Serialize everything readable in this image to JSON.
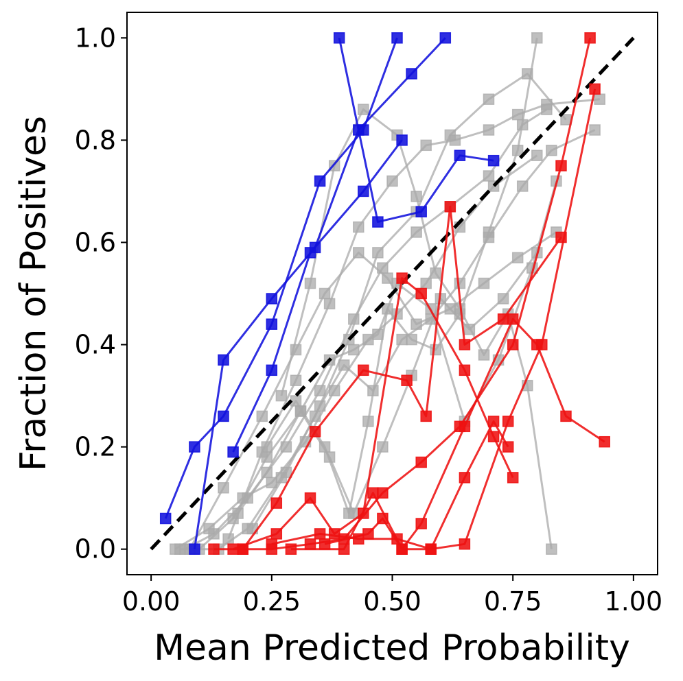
{
  "chart_data": {
    "type": "line",
    "title": "",
    "xlabel": "Mean Predicted Probability",
    "ylabel": "Fraction of Positives",
    "xlim": [
      -0.05,
      1.05
    ],
    "ylim": [
      -0.05,
      1.05
    ],
    "xticks": [
      0,
      0.25,
      0.5,
      0.75,
      1.0
    ],
    "yticks": [
      0,
      0.2,
      0.4,
      0.6,
      0.8,
      1.0
    ],
    "xtick_labels": [
      "0.00",
      "0.25",
      "0.50",
      "0.75",
      "1.00"
    ],
    "ytick_labels": [
      "0.0",
      "0.2",
      "0.4",
      "0.6",
      "0.8",
      "1.0"
    ],
    "grid": false,
    "reference_line": {
      "name": "perfect-calibration",
      "x": [
        0,
        1
      ],
      "y": [
        0,
        1
      ],
      "color": "#000000",
      "style": "dashed"
    },
    "colors": {
      "gray": "#aaaaaa",
      "blue": "#1111dd",
      "red": "#ee1111"
    },
    "series": [
      {
        "name": "blue-1",
        "group": "blue",
        "x": [
          0.03,
          0.09,
          0.15,
          0.25,
          0.35,
          0.44,
          0.51
        ],
        "y": [
          0.06,
          0.2,
          0.26,
          0.44,
          0.72,
          0.82,
          1.0
        ]
      },
      {
        "name": "blue-2",
        "group": "blue",
        "x": [
          0.09,
          0.15,
          0.25,
          0.34,
          0.43,
          0.54,
          0.61
        ],
        "y": [
          0.0,
          0.37,
          0.49,
          0.59,
          0.82,
          0.93,
          1.0
        ]
      },
      {
        "name": "blue-3",
        "group": "blue",
        "x": [
          0.17,
          0.25,
          0.33,
          0.44,
          0.52
        ],
        "y": [
          0.19,
          0.35,
          0.58,
          0.7,
          0.8
        ]
      },
      {
        "name": "blue-4",
        "group": "blue",
        "x": [
          0.39,
          0.47,
          0.56,
          0.64,
          0.71
        ],
        "y": [
          1.0,
          0.64,
          0.66,
          0.77,
          0.76
        ]
      },
      {
        "name": "red-1",
        "group": "red",
        "x": [
          0.13,
          0.19,
          0.25,
          0.33,
          0.4,
          0.48,
          0.56,
          0.64,
          0.75,
          0.85,
          0.91
        ],
        "y": [
          0.0,
          0.0,
          0.0,
          0.01,
          0.02,
          0.11,
          0.17,
          0.24,
          0.4,
          0.75,
          1.0
        ]
      },
      {
        "name": "red-2",
        "group": "red",
        "x": [
          0.17,
          0.26,
          0.33,
          0.38,
          0.44,
          0.52,
          0.56,
          0.65,
          0.71,
          0.75
        ],
        "y": [
          0.0,
          0.03,
          0.1,
          0.03,
          0.07,
          0.53,
          0.5,
          0.35,
          0.22,
          0.14
        ]
      },
      {
        "name": "red-3",
        "group": "red",
        "x": [
          0.19,
          0.26,
          0.34,
          0.44,
          0.53,
          0.57,
          0.62,
          0.65,
          0.73,
          0.85
        ],
        "y": [
          0.0,
          0.09,
          0.23,
          0.35,
          0.33,
          0.26,
          0.67,
          0.4,
          0.45,
          0.61
        ]
      },
      {
        "name": "red-4",
        "group": "red",
        "x": [
          0.25,
          0.35,
          0.43,
          0.51,
          0.58,
          0.65,
          0.71,
          0.74
        ],
        "y": [
          0.01,
          0.03,
          0.02,
          0.02,
          0.0,
          0.14,
          0.25,
          0.2
        ]
      },
      {
        "name": "red-5",
        "group": "red",
        "x": [
          0.29,
          0.4,
          0.46,
          0.52,
          0.56,
          0.65,
          0.75,
          0.8,
          0.86,
          0.94
        ],
        "y": [
          0.0,
          0.0,
          0.11,
          0.0,
          0.05,
          0.24,
          0.45,
          0.4,
          0.26,
          0.21
        ]
      },
      {
        "name": "red-6",
        "group": "red",
        "x": [
          0.36,
          0.45,
          0.48,
          0.52,
          0.58,
          0.65,
          0.74,
          0.81,
          0.92
        ],
        "y": [
          0.01,
          0.03,
          0.06,
          0.0,
          0.0,
          0.01,
          0.25,
          0.4,
          0.9
        ]
      },
      {
        "name": "gray-1",
        "group": "gray",
        "x": [
          0.05,
          0.12,
          0.19,
          0.25,
          0.32,
          0.38,
          0.45,
          0.51,
          0.57,
          0.64,
          0.71,
          0.8
        ],
        "y": [
          0.0,
          0.04,
          0.1,
          0.13,
          0.21,
          0.31,
          0.41,
          0.46,
          0.52,
          0.63,
          0.71,
          0.77
        ]
      },
      {
        "name": "gray-2",
        "group": "gray",
        "x": [
          0.08,
          0.15,
          0.23,
          0.3,
          0.36,
          0.43,
          0.49,
          0.55,
          0.62,
          0.69,
          0.76,
          0.84
        ],
        "y": [
          0.0,
          0.12,
          0.26,
          0.39,
          0.5,
          0.58,
          0.53,
          0.44,
          0.47,
          0.52,
          0.57,
          0.62
        ]
      },
      {
        "name": "gray-3",
        "group": "gray",
        "x": [
          0.06,
          0.14,
          0.2,
          0.27,
          0.34,
          0.41,
          0.47,
          0.55,
          0.62,
          0.7,
          0.78,
          0.86
        ],
        "y": [
          0.0,
          0.0,
          0.04,
          0.14,
          0.26,
          0.41,
          0.58,
          0.66,
          0.81,
          0.88,
          0.93,
          0.84
        ]
      },
      {
        "name": "gray-4",
        "group": "gray",
        "x": [
          0.1,
          0.17,
          0.24,
          0.31,
          0.37,
          0.42,
          0.48,
          0.54,
          0.6,
          0.66,
          0.73,
          0.8
        ],
        "y": [
          0.0,
          0.06,
          0.18,
          0.27,
          0.18,
          0.07,
          0.2,
          0.34,
          0.49,
          0.43,
          0.49,
          0.58
        ]
      },
      {
        "name": "gray-5",
        "group": "gray",
        "x": [
          0.07,
          0.13,
          0.2,
          0.28,
          0.35,
          0.42,
          0.48,
          0.55,
          0.62,
          0.7,
          0.77,
          0.82
        ],
        "y": [
          0.0,
          0.03,
          0.1,
          0.2,
          0.31,
          0.45,
          0.55,
          0.62,
          0.67,
          0.73,
          0.83,
          0.86
        ]
      },
      {
        "name": "gray-6",
        "group": "gray",
        "x": [
          0.16,
          0.23,
          0.3,
          0.37,
          0.43,
          0.5,
          0.57,
          0.63,
          0.7,
          0.76,
          0.82,
          0.93
        ],
        "y": [
          0.02,
          0.19,
          0.33,
          0.48,
          0.63,
          0.72,
          0.79,
          0.8,
          0.82,
          0.85,
          0.87,
          0.88
        ]
      },
      {
        "name": "gray-7",
        "group": "gray",
        "x": [
          0.18,
          0.24,
          0.31,
          0.37,
          0.42,
          0.47,
          0.51,
          0.58,
          0.65,
          0.72,
          0.79,
          0.84
        ],
        "y": [
          0.07,
          0.15,
          0.27,
          0.37,
          0.39,
          0.42,
          0.52,
          0.47,
          0.25,
          0.37,
          0.55,
          0.72
        ]
      },
      {
        "name": "gray-8",
        "group": "gray",
        "x": [
          0.21,
          0.28,
          0.35,
          0.4,
          0.46,
          0.52,
          0.58,
          0.64,
          0.7,
          0.77,
          0.83,
          0.92
        ],
        "y": [
          0.04,
          0.15,
          0.28,
          0.36,
          0.31,
          0.41,
          0.45,
          0.52,
          0.61,
          0.71,
          0.78,
          0.82
        ]
      },
      {
        "name": "gray-9",
        "group": "gray",
        "x": [
          0.24,
          0.3,
          0.36,
          0.41,
          0.45,
          0.49,
          0.54,
          0.59,
          0.64,
          0.7,
          0.76,
          0.8
        ],
        "y": [
          0.2,
          0.29,
          0.2,
          0.07,
          0.25,
          0.47,
          0.41,
          0.39,
          0.46,
          0.62,
          0.78,
          1.0
        ]
      },
      {
        "name": "gray-10",
        "group": "gray",
        "x": [
          0.27,
          0.33,
          0.38,
          0.44,
          0.51,
          0.55,
          0.59,
          0.64,
          0.69,
          0.74,
          0.78,
          0.83
        ],
        "y": [
          0.3,
          0.52,
          0.75,
          0.86,
          0.81,
          0.69,
          0.54,
          0.47,
          0.38,
          0.46,
          0.32,
          0.0
        ]
      }
    ]
  }
}
